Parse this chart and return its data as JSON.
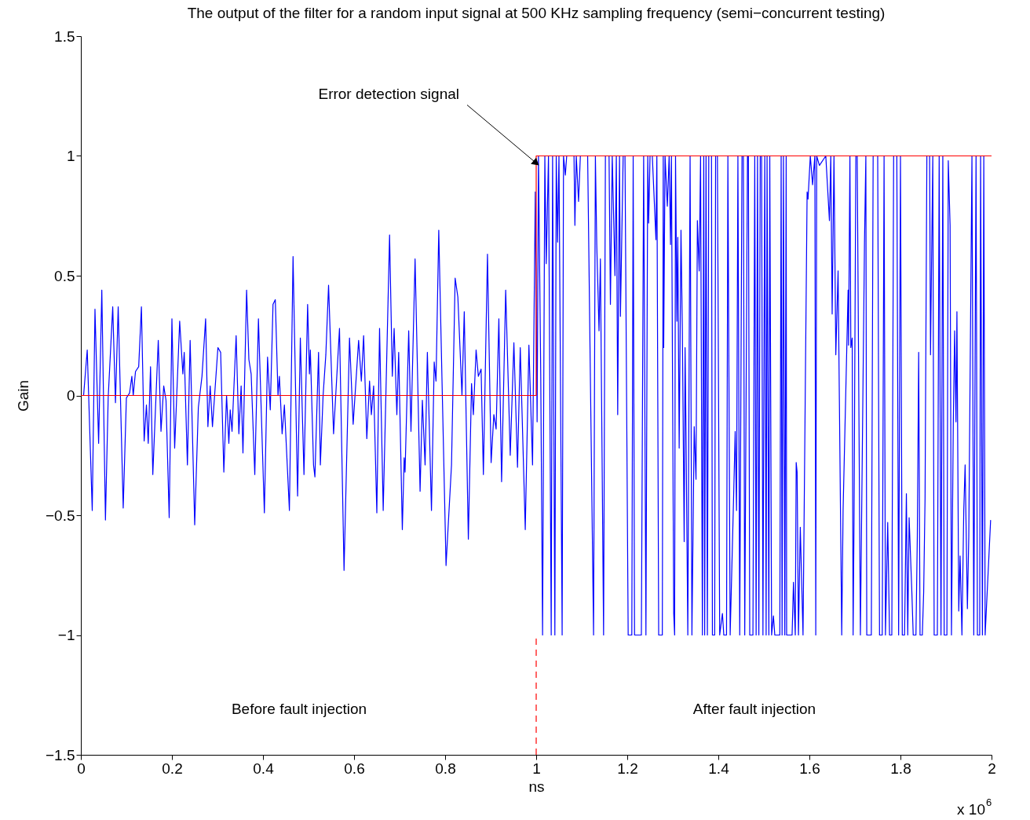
{
  "chart_data": {
    "type": "line",
    "title": "The output of the filter for a random input signal at 500 KHz sampling frequency (semi−concurrent testing)",
    "xlabel": "ns",
    "ylabel": "Gain",
    "xlim": [
      0,
      2
    ],
    "xticks": [
      0,
      0.2,
      0.4,
      0.6,
      0.8,
      1,
      1.2,
      1.4,
      1.6,
      1.8,
      2
    ],
    "ylim": [
      -1.5,
      1.5
    ],
    "yticks": [
      {
        "value": -1.5,
        "label": "−1.5"
      },
      {
        "value": -1,
        "label": "−1"
      },
      {
        "value": -0.5,
        "label": "−0.5"
      },
      0,
      0.5,
      1,
      1.5
    ],
    "series": [
      {
        "color": "#0000ff",
        "x": [
          0,
          0.006,
          0.014,
          0.025,
          0.031,
          0.039,
          0.046,
          0.054,
          0.06,
          0.07,
          0.076,
          0.082,
          0.093,
          0.1,
          0.107,
          0.112,
          0.115,
          0.12,
          0.127,
          0.133,
          0.139,
          0.144,
          0.148,
          0.153,
          0.158,
          0.17,
          0.176,
          0.182,
          0.187,
          0.194,
          0.2,
          0.206,
          0.217,
          0.224,
          0.227,
          0.234,
          0.24,
          0.25,
          0.258,
          0.266,
          0.274,
          0.279,
          0.284,
          0.289,
          0.301,
          0.307,
          0.314,
          0.32,
          0.325,
          0.328,
          0.332,
          0.341,
          0.347,
          0.352,
          0.356,
          0.364,
          0.369,
          0.374,
          0.382,
          0.39,
          0.403,
          0.41,
          0.416,
          0.422,
          0.427,
          0.433,
          0.436,
          0.442,
          0.447,
          0.458,
          0.466,
          0.476,
          0.482,
          0.49,
          0.498,
          0.502,
          0.504,
          0.511,
          0.514,
          0.522,
          0.526,
          0.532,
          0.538,
          0.544,
          0.555,
          0.568,
          0.578,
          0.59,
          0.598,
          0.61,
          0.616,
          0.621,
          0.628,
          0.634,
          0.638,
          0.643,
          0.65,
          0.656,
          0.664,
          0.678,
          0.684,
          0.688,
          0.694,
          0.698,
          0.706,
          0.71,
          0.712,
          0.72,
          0.725,
          0.734,
          0.745,
          0.75,
          0.756,
          0.761,
          0.77,
          0.776,
          0.78,
          0.786,
          0.802,
          0.814,
          0.822,
          0.828,
          0.837,
          0.842,
          0.851,
          0.858,
          0.862,
          0.868,
          0.873,
          0.879,
          0.884,
          0.893,
          0.901,
          0.907,
          0.912,
          0.918,
          0.924,
          0.933,
          0.943,
          0.951,
          0.959,
          0.965,
          0.976,
          0.984,
          0.992,
          0.998,
          1.002,
          1.005,
          1.01,
          1.014,
          1.019,
          1.022,
          1.027,
          1.033,
          1.036,
          1.041,
          1.044,
          1.047,
          1.05,
          1.057,
          1.06,
          1.064,
          1.067,
          1.083,
          1.085,
          1.088,
          1.093,
          1.097,
          1.113,
          1.126,
          1.13,
          1.133,
          1.138,
          1.141,
          1.148,
          1.152,
          1.16,
          1.163,
          1.167,
          1.173,
          1.176,
          1.179,
          1.183,
          1.185,
          1.191,
          1.195,
          1.202,
          1.21,
          1.213,
          1.216,
          1.231,
          1.236,
          1.241,
          1.245,
          1.247,
          1.25,
          1.255,
          1.263,
          1.265,
          1.269,
          1.277,
          1.279,
          1.28,
          1.283,
          1.288,
          1.292,
          1.295,
          1.297,
          1.302,
          1.304,
          1.306,
          1.309,
          1.311,
          1.314,
          1.318,
          1.321,
          1.325,
          1.327,
          1.329,
          1.333,
          1.338,
          1.342,
          1.347,
          1.351,
          1.354,
          1.358,
          1.361,
          1.365,
          1.368,
          1.37,
          1.373,
          1.376,
          1.379,
          1.385,
          1.387,
          1.392,
          1.394,
          1.398,
          1.403,
          1.409,
          1.412,
          1.418,
          1.421,
          1.426,
          1.434,
          1.437,
          1.44,
          1.443,
          1.447,
          1.452,
          1.455,
          1.458,
          1.464,
          1.466,
          1.469,
          1.476,
          1.48,
          1.483,
          1.486,
          1.489,
          1.492,
          1.495,
          1.498,
          1.502,
          1.505,
          1.507,
          1.511,
          1.513,
          1.517,
          1.521,
          1.524,
          1.535,
          1.538,
          1.54,
          1.543,
          1.546,
          1.549,
          1.55,
          1.562,
          1.565,
          1.569,
          1.571,
          1.573,
          1.576,
          1.58,
          1.586,
          1.595,
          1.597,
          1.602,
          1.607,
          1.612,
          1.614,
          1.616,
          1.622,
          1.636,
          1.644,
          1.647,
          1.65,
          1.654,
          1.658,
          1.663,
          1.671,
          1.674,
          1.685,
          1.686,
          1.689,
          1.691,
          1.694,
          1.696,
          1.698,
          1.702,
          1.705,
          1.712,
          1.721,
          1.724,
          1.726,
          1.736,
          1.74,
          1.75,
          1.754,
          1.76,
          1.764,
          1.767,
          1.772,
          1.776,
          1.781,
          1.785,
          1.792,
          1.796,
          1.8,
          1.804,
          1.809,
          1.813,
          1.816,
          1.819,
          1.825,
          1.828,
          1.834,
          1.837,
          1.84,
          1.843,
          1.848,
          1.851,
          1.854,
          1.858,
          1.864,
          1.866,
          1.871,
          1.874,
          1.881,
          1.885,
          1.889,
          1.893,
          1.896,
          1.902,
          1.905,
          1.909,
          1.912,
          1.916,
          1.919,
          1.922,
          1.924,
          1.928,
          1.931,
          1.935,
          1.939,
          1.942,
          1.947,
          1.95,
          1.957,
          1.961,
          1.966,
          1.969,
          1.974,
          1.976,
          1.98,
          1.983,
          1.986,
          1.998
        ],
        "values": [
          0,
          0,
          0.19,
          -0.48,
          0.36,
          -0.2,
          0.44,
          -0.52,
          -0.01,
          0.37,
          -0.03,
          0.37,
          -0.47,
          -0.01,
          0.01,
          0.08,
          0,
          0.1,
          0.12,
          0.37,
          -0.19,
          -0.04,
          -0.2,
          0.12,
          -0.33,
          0.23,
          -0.15,
          0.04,
          -0.02,
          -0.51,
          0.32,
          -0.22,
          0.31,
          0.09,
          0.18,
          -0.29,
          0.23,
          -0.54,
          -0.05,
          0.08,
          0.32,
          -0.13,
          0.04,
          -0.13,
          0.2,
          0.18,
          -0.32,
          0,
          -0.2,
          -0.06,
          -0.15,
          0.25,
          -0.16,
          0.04,
          -0.24,
          0.44,
          0.15,
          0.09,
          -0.33,
          0.32,
          -0.49,
          0.16,
          -0.06,
          0.38,
          0.4,
          0,
          0.08,
          -0.16,
          -0.04,
          -0.48,
          0.58,
          -0.42,
          0.24,
          -0.33,
          0.38,
          0.09,
          0.19,
          -0.29,
          -0.34,
          0.18,
          -0.29,
          0,
          0.17,
          0.46,
          -0.16,
          0.28,
          -0.73,
          0.24,
          -0.12,
          0.23,
          0.06,
          0.25,
          -0.18,
          0.06,
          -0.08,
          0.04,
          -0.49,
          0.28,
          -0.48,
          0.67,
          0.08,
          0.28,
          -0.08,
          0.18,
          -0.56,
          -0.26,
          -0.32,
          0.27,
          -0.15,
          0.57,
          -0.4,
          -0.02,
          -0.29,
          0.18,
          -0.48,
          0.14,
          0.06,
          0.69,
          -0.71,
          -0.29,
          0.49,
          0.41,
          0,
          0.35,
          -0.6,
          0.05,
          -0.08,
          0.19,
          0.08,
          0.11,
          -0.33,
          0.59,
          -0.28,
          -0.08,
          -0.14,
          0.32,
          -0.36,
          0.44,
          -0.25,
          0.22,
          -0.3,
          0.2,
          -0.56,
          0.21,
          -0.29,
          0.85,
          -0.11,
          1,
          0.08,
          -1,
          1,
          0.55,
          1,
          -1,
          1,
          -1,
          1,
          0.64,
          1,
          -1,
          1,
          0.92,
          1,
          1,
          0.71,
          1,
          0.81,
          1,
          1,
          -1,
          1,
          0.63,
          0.27,
          0.57,
          -1,
          1,
          1,
          0.38,
          1,
          0.5,
          1,
          -0.08,
          1,
          0.33,
          1,
          1,
          -1,
          -1,
          1,
          -1,
          -1,
          1,
          -1,
          1,
          0.72,
          1,
          1,
          0.65,
          1,
          -1,
          -1,
          1,
          0.2,
          1,
          0.79,
          1,
          0.63,
          1,
          -0.91,
          -1,
          1,
          0.31,
          0.66,
          -0.22,
          0.69,
          0.27,
          -0.61,
          0.2,
          -0.15,
          -1,
          1,
          -1,
          -0.13,
          -0.35,
          0.73,
          0.52,
          1,
          -1,
          1,
          -1,
          1,
          -1,
          1,
          1,
          -1,
          -1,
          1,
          1,
          -1,
          -0.91,
          -1,
          -1,
          1,
          -1,
          -0.39,
          -0.15,
          -0.48,
          1,
          -1,
          1,
          1,
          -1,
          1,
          1,
          -1,
          -1,
          1,
          -1,
          1,
          -1,
          1,
          1,
          -1,
          1,
          -1,
          1,
          -1,
          1,
          -1,
          -0.92,
          -1,
          -1,
          1,
          -1,
          1,
          -1,
          1,
          -1,
          -1,
          -0.78,
          -1,
          -0.28,
          -0.32,
          -1,
          -0.55,
          -1,
          0.85,
          0.82,
          1,
          0.88,
          1,
          -1,
          1,
          0.96,
          1,
          0.73,
          1,
          0.34,
          1,
          0.17,
          0.52,
          -1,
          -0.48,
          0.44,
          0.21,
          1,
          0.2,
          0.24,
          -1,
          -0.53,
          1,
          1,
          -1,
          0.64,
          1,
          -1,
          -1,
          1,
          1,
          -1,
          -1,
          1,
          -1,
          -0.53,
          -1,
          -1,
          1,
          1,
          -1,
          1,
          -1,
          -1,
          -0.41,
          -1,
          -0.51,
          -0.82,
          -1,
          -1,
          -0.59,
          0.18,
          -1,
          -1,
          -0.82,
          -0.43,
          1,
          1,
          0.17,
          1,
          -1,
          -1,
          1,
          -1,
          1,
          -1,
          -1,
          0.98,
          0.71,
          -1,
          -0.12,
          0.27,
          -0.11,
          0.35,
          -0.9,
          -0.67,
          -1,
          -0.48,
          -0.29,
          -0.89,
          -0.59,
          1,
          -1,
          1,
          -1,
          -1,
          1,
          -1,
          1,
          -1,
          -0.52
        ]
      },
      {
        "color": "#ff0000",
        "x": [
          0,
          1,
          1,
          2
        ],
        "values": [
          0,
          0,
          1,
          1
        ]
      }
    ],
    "ref_lines": [
      {
        "axis": "x",
        "value": 1,
        "color": "#ff0000",
        "line_style": "dashed"
      }
    ],
    "annotations": [
      {
        "text": "Error detection signal",
        "x": 1,
        "y": 0.97
      },
      "Before fault injection",
      "After fault injection",
      "x 10$^{6}$"
    ]
  }
}
